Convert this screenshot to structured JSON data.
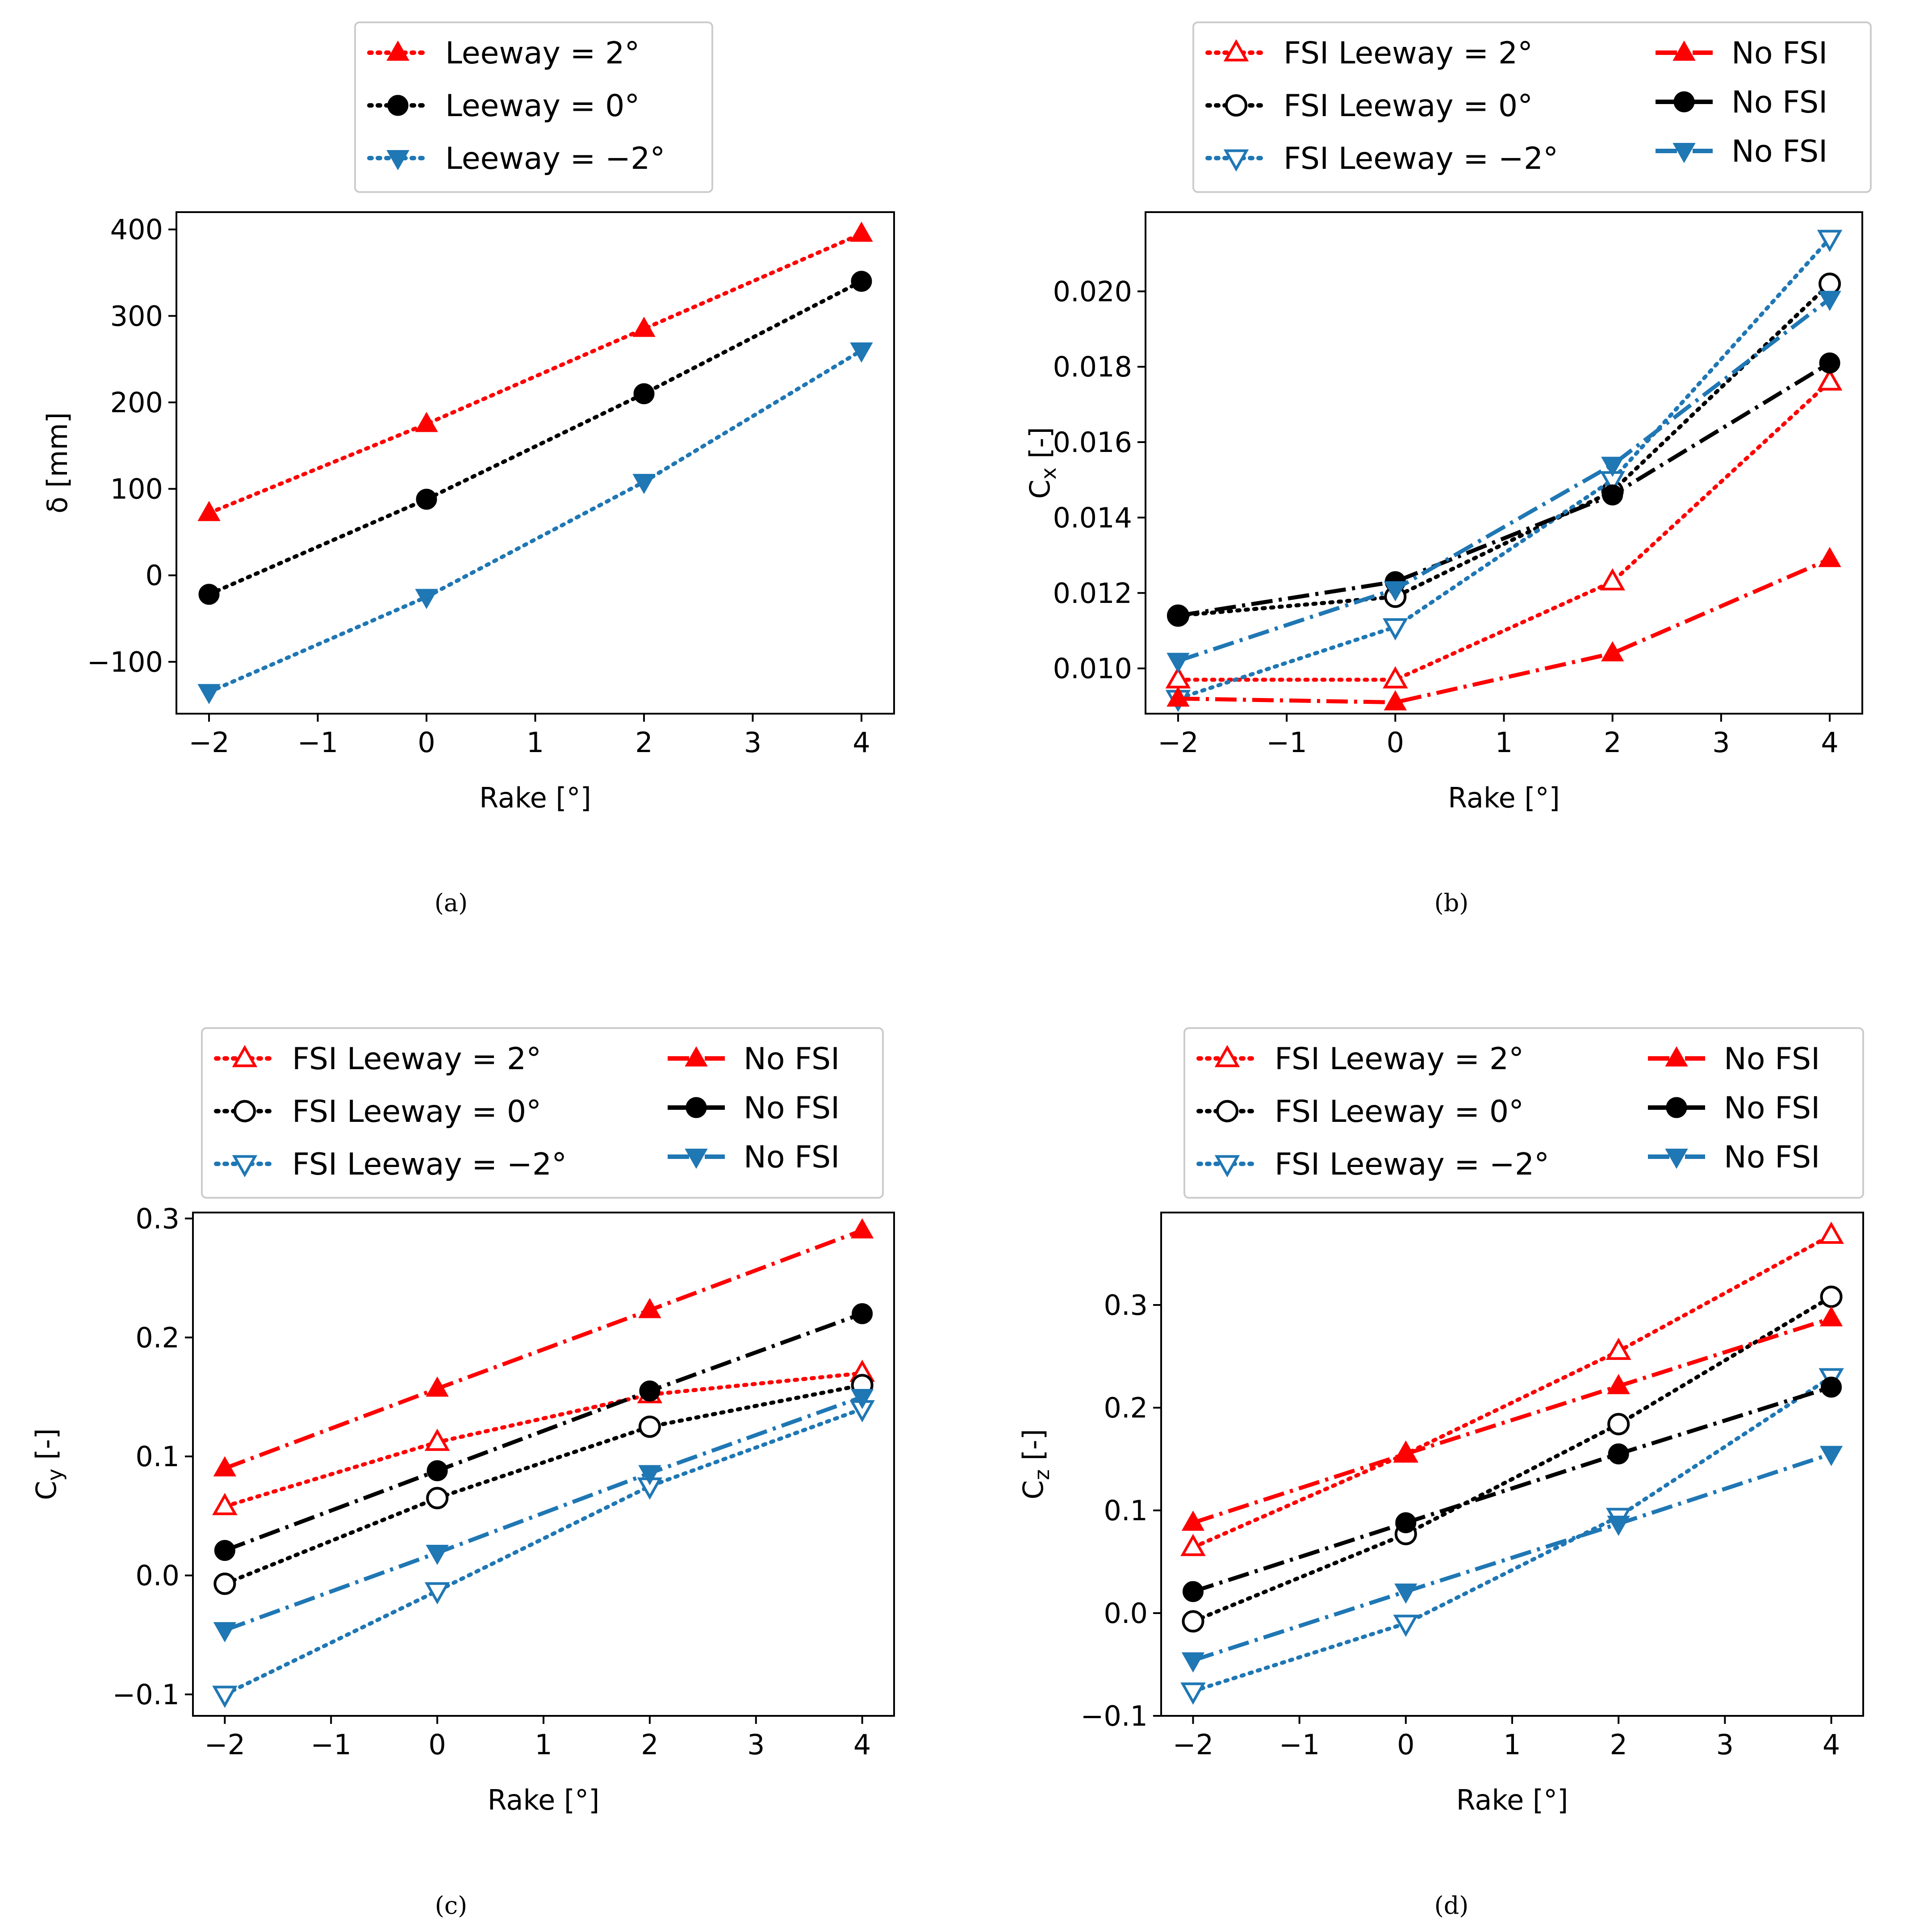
{
  "figure": {
    "subplots": [
      {
        "caption": "(a)"
      },
      {
        "caption": "(b)"
      },
      {
        "caption": "(c)"
      },
      {
        "caption": "(d)"
      }
    ]
  },
  "colors": {
    "red": "#ff0000",
    "black": "#000000",
    "blue": "#1f77b4"
  },
  "chart_data": [
    {
      "type": "line",
      "panel": "a",
      "xlabel": "Rake [°]",
      "ylabel": "δ [mm]",
      "xlim": [
        -2.3,
        4.3
      ],
      "ylim": [
        -160,
        420
      ],
      "xticks": [
        -2,
        -1,
        0,
        1,
        2,
        3,
        4
      ],
      "xtick_labels": [
        "−2",
        "−1",
        "0",
        "1",
        "2",
        "3",
        "4"
      ],
      "yticks": [
        -100,
        0,
        100,
        200,
        300,
        400
      ],
      "ytick_labels": [
        "−100",
        "0",
        "100",
        "200",
        "300",
        "400"
      ],
      "legend_position": "top-center",
      "legend_columns": 1,
      "series": [
        {
          "name": "Leeway = 2°",
          "color": "red",
          "marker": "triangle-up",
          "filled": true,
          "line": "dotted",
          "x": [
            -2,
            0,
            2,
            4
          ],
          "values": [
            72,
            175,
            285,
            395
          ]
        },
        {
          "name": "Leeway = 0°",
          "color": "black",
          "marker": "circle",
          "filled": true,
          "line": "dotted",
          "x": [
            -2,
            0,
            2,
            4
          ],
          "values": [
            -22,
            88,
            210,
            340
          ]
        },
        {
          "name": "Leeway = −2°",
          "color": "blue",
          "marker": "triangle-down",
          "filled": true,
          "line": "dotted",
          "x": [
            -2,
            0,
            2,
            4
          ],
          "values": [
            -135,
            -25,
            108,
            260
          ]
        }
      ]
    },
    {
      "type": "line",
      "panel": "b",
      "xlabel": "Rake [°]",
      "ylabel_main": "C",
      "ylabel_sub": "x",
      "ylabel_tail": " [-]",
      "xlim": [
        -2.3,
        4.3
      ],
      "ylim": [
        0.0088,
        0.0221
      ],
      "xticks": [
        -2,
        -1,
        0,
        1,
        2,
        3,
        4
      ],
      "xtick_labels": [
        "−2",
        "−1",
        "0",
        "1",
        "2",
        "3",
        "4"
      ],
      "yticks": [
        0.01,
        0.012,
        0.014,
        0.016,
        0.018,
        0.02
      ],
      "ytick_labels": [
        "0.010",
        "0.012",
        "0.014",
        "0.016",
        "0.018",
        "0.020"
      ],
      "legend_position": "top-center",
      "legend_columns": 2,
      "series": [
        {
          "name": "FSI Leeway = 2°",
          "color": "red",
          "marker": "triangle-up",
          "filled": false,
          "line": "dotted",
          "x": [
            -2,
            0,
            2,
            4
          ],
          "values": [
            0.0097,
            0.0097,
            0.0123,
            0.0176
          ]
        },
        {
          "name": "FSI Leeway = 0°",
          "color": "black",
          "marker": "circle",
          "filled": false,
          "line": "dotted",
          "x": [
            -2,
            0,
            2,
            4
          ],
          "values": [
            0.0114,
            0.0119,
            0.0147,
            0.0202
          ]
        },
        {
          "name": "FSI Leeway = −2°",
          "color": "blue",
          "marker": "triangle-down",
          "filled": false,
          "line": "dotted",
          "x": [
            -2,
            0,
            2,
            4
          ],
          "values": [
            0.0092,
            0.0111,
            0.015,
            0.0214
          ]
        },
        {
          "name": "No FSI",
          "color": "red",
          "marker": "triangle-up",
          "filled": true,
          "line": "dashdot",
          "x": [
            -2,
            0,
            2,
            4
          ],
          "values": [
            0.0092,
            0.0091,
            0.0104,
            0.0129
          ]
        },
        {
          "name": "No FSI",
          "color": "black",
          "marker": "circle",
          "filled": true,
          "line": "dashdot",
          "x": [
            -2,
            0,
            2,
            4
          ],
          "values": [
            0.0114,
            0.0123,
            0.0146,
            0.0181
          ]
        },
        {
          "name": "No FSI",
          "color": "blue",
          "marker": "triangle-down",
          "filled": true,
          "line": "dashdot",
          "x": [
            -2,
            0,
            2,
            4
          ],
          "values": [
            0.0102,
            0.0121,
            0.0154,
            0.0198
          ]
        }
      ]
    },
    {
      "type": "line",
      "panel": "c",
      "xlabel": "Rake [°]",
      "ylabel_main": "C",
      "ylabel_sub": "y",
      "ylabel_tail": " [-]",
      "xlim": [
        -2.3,
        4.3
      ],
      "ylim": [
        -0.118,
        0.305
      ],
      "xticks": [
        -2,
        -1,
        0,
        1,
        2,
        3,
        4
      ],
      "xtick_labels": [
        "−2",
        "−1",
        "0",
        "1",
        "2",
        "3",
        "4"
      ],
      "yticks": [
        -0.1,
        0.0,
        0.1,
        0.2,
        0.3
      ],
      "ytick_labels": [
        "−0.1",
        "0.0",
        "0.1",
        "0.2",
        "0.3"
      ],
      "legend_position": "top-center",
      "legend_columns": 2,
      "series": [
        {
          "name": "FSI Leeway = 2°",
          "color": "red",
          "marker": "triangle-up",
          "filled": false,
          "line": "dotted",
          "x": [
            -2,
            0,
            2,
            4
          ],
          "values": [
            0.058,
            0.112,
            0.152,
            0.17
          ]
        },
        {
          "name": "FSI Leeway = 0°",
          "color": "black",
          "marker": "circle",
          "filled": false,
          "line": "dotted",
          "x": [
            -2,
            0,
            2,
            4
          ],
          "values": [
            -0.007,
            0.065,
            0.125,
            0.16
          ]
        },
        {
          "name": "FSI Leeway = −2°",
          "color": "blue",
          "marker": "triangle-down",
          "filled": false,
          "line": "dotted",
          "x": [
            -2,
            0,
            2,
            4
          ],
          "values": [
            -0.1,
            -0.013,
            0.075,
            0.14
          ]
        },
        {
          "name": "No FSI",
          "color": "red",
          "marker": "triangle-up",
          "filled": true,
          "line": "dashdot",
          "x": [
            -2,
            0,
            2,
            4
          ],
          "values": [
            0.09,
            0.157,
            0.223,
            0.29
          ]
        },
        {
          "name": "No FSI",
          "color": "black",
          "marker": "circle",
          "filled": true,
          "line": "dashdot",
          "x": [
            -2,
            0,
            2,
            4
          ],
          "values": [
            0.021,
            0.088,
            0.155,
            0.22
          ]
        },
        {
          "name": "No FSI",
          "color": "blue",
          "marker": "triangle-down",
          "filled": true,
          "line": "dashdot",
          "x": [
            -2,
            0,
            2,
            4
          ],
          "values": [
            -0.046,
            0.019,
            0.086,
            0.15
          ]
        }
      ]
    },
    {
      "type": "line",
      "panel": "d",
      "xlabel": "Rake [°]",
      "ylabel_main": "C",
      "ylabel_sub": "z",
      "ylabel_tail": " [-]",
      "xlim": [
        -2.3,
        4.3
      ],
      "ylim": [
        -0.1,
        0.39
      ],
      "xticks": [
        -2,
        -1,
        0,
        1,
        2,
        3,
        4
      ],
      "xtick_labels": [
        "−2",
        "−1",
        "0",
        "1",
        "2",
        "3",
        "4"
      ],
      "yticks": [
        -0.1,
        0.0,
        0.1,
        0.2,
        0.3
      ],
      "ytick_labels": [
        "−0.1",
        "0.0",
        "0.1",
        "0.2",
        "0.3"
      ],
      "legend_position": "top-center",
      "legend_columns": 2,
      "series": [
        {
          "name": "FSI Leeway = 2°",
          "color": "red",
          "marker": "triangle-up",
          "filled": false,
          "line": "dotted",
          "x": [
            -2,
            0,
            2,
            4
          ],
          "values": [
            0.064,
            0.155,
            0.255,
            0.368
          ]
        },
        {
          "name": "FSI Leeway = 0°",
          "color": "black",
          "marker": "circle",
          "filled": false,
          "line": "dotted",
          "x": [
            -2,
            0,
            2,
            4
          ],
          "values": [
            -0.008,
            0.077,
            0.184,
            0.308
          ]
        },
        {
          "name": "FSI Leeway = −2°",
          "color": "blue",
          "marker": "triangle-down",
          "filled": false,
          "line": "dotted",
          "x": [
            -2,
            0,
            2,
            4
          ],
          "values": [
            -0.076,
            -0.01,
            0.094,
            0.23
          ]
        },
        {
          "name": "No FSI",
          "color": "red",
          "marker": "triangle-up",
          "filled": true,
          "line": "dashdot",
          "x": [
            -2,
            0,
            2,
            4
          ],
          "values": [
            0.088,
            0.155,
            0.221,
            0.287
          ]
        },
        {
          "name": "No FSI",
          "color": "black",
          "marker": "circle",
          "filled": true,
          "line": "dashdot",
          "x": [
            -2,
            0,
            2,
            4
          ],
          "values": [
            0.021,
            0.088,
            0.155,
            0.22
          ]
        },
        {
          "name": "No FSI",
          "color": "blue",
          "marker": "triangle-down",
          "filled": true,
          "line": "dashdot",
          "x": [
            -2,
            0,
            2,
            4
          ],
          "values": [
            -0.046,
            0.021,
            0.087,
            0.155
          ]
        }
      ]
    }
  ]
}
